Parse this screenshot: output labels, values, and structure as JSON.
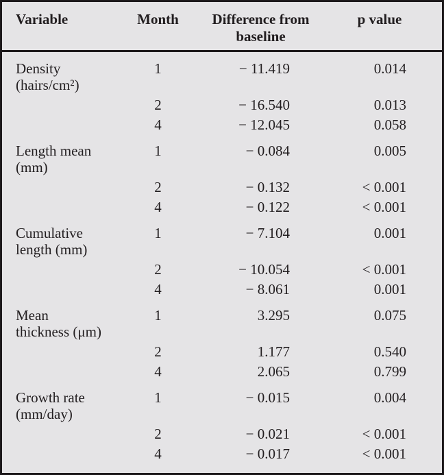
{
  "colors": {
    "paper_bg": "#e5e4e6",
    "line": "#1d191b",
    "text": "#221e20"
  },
  "table": {
    "header": {
      "variable": "Variable",
      "month": "Month",
      "difference_line1": "Difference from",
      "difference_line2": "baseline",
      "p_value": "p value"
    },
    "groups": [
      {
        "label_line1": "Density",
        "label_line2": "(hairs/cm²)",
        "rows": [
          {
            "month": "1",
            "difference": "− 11.419",
            "p": "0.014"
          },
          {
            "month": "2",
            "difference": "− 16.540",
            "p": "0.013"
          },
          {
            "month": "4",
            "difference": "− 12.045",
            "p": "0.058"
          }
        ]
      },
      {
        "label_line1": "Length mean",
        "label_line2": "(mm)",
        "rows": [
          {
            "month": "1",
            "difference": "− 0.084",
            "p": "0.005"
          },
          {
            "month": "2",
            "difference": "− 0.132",
            "p": "< 0.001"
          },
          {
            "month": "4",
            "difference": "− 0.122",
            "p": "< 0.001"
          }
        ]
      },
      {
        "label_line1": "Cumulative",
        "label_line2": "length (mm)",
        "rows": [
          {
            "month": "1",
            "difference": "− 7.104",
            "p": "0.001"
          },
          {
            "month": "2",
            "difference": "− 10.054",
            "p": "< 0.001"
          },
          {
            "month": "4",
            "difference": "− 8.061",
            "p": "0.001"
          }
        ]
      },
      {
        "label_line1": "Mean",
        "label_line2": "thickness (μm)",
        "rows": [
          {
            "month": "1",
            "difference": "3.295",
            "p": "0.075"
          },
          {
            "month": "2",
            "difference": "1.177",
            "p": "0.540"
          },
          {
            "month": "4",
            "difference": "2.065",
            "p": "0.799"
          }
        ]
      },
      {
        "label_line1": "Growth rate",
        "label_line2": "(mm/day)",
        "rows": [
          {
            "month": "1",
            "difference": "− 0.015",
            "p": "0.004"
          },
          {
            "month": "2",
            "difference": "− 0.021",
            "p": "< 0.001"
          },
          {
            "month": "4",
            "difference": "− 0.017",
            "p": "< 0.001"
          }
        ]
      }
    ]
  }
}
